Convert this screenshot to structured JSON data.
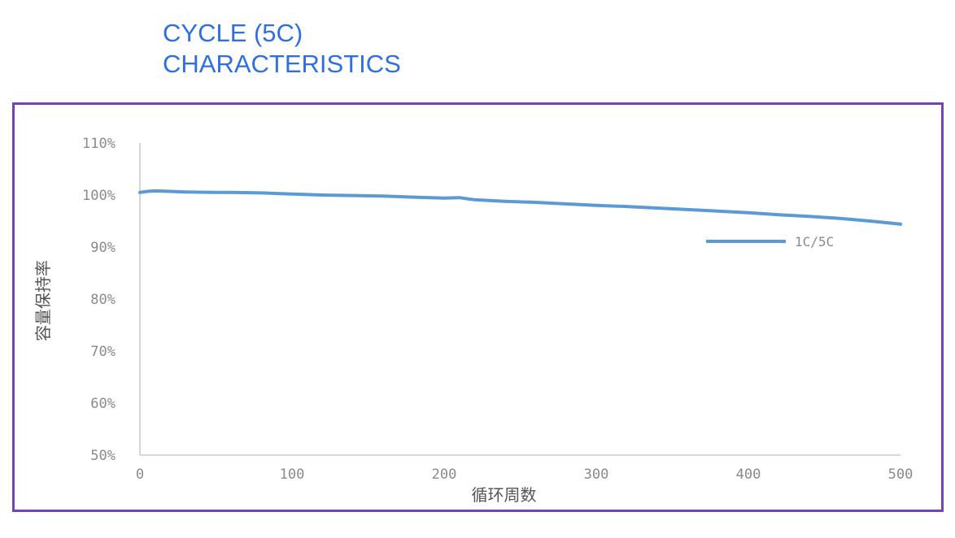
{
  "header": {
    "title_line1": "CYCLE (5C)",
    "title_line2": "CHARACTERISTICS"
  },
  "colors": {
    "title": "#2f6fe0",
    "frame": "#7443b5",
    "series": "#5b9bd5"
  },
  "chart_data": {
    "type": "line",
    "title": "CYCLE (5C) CHARACTERISTICS",
    "xlabel": "循环周数",
    "ylabel": "容量保持率",
    "xlim": [
      0,
      500
    ],
    "ylim": [
      50,
      110
    ],
    "x_ticks": [
      "0",
      "100",
      "200",
      "300",
      "400",
      "500"
    ],
    "y_ticks": [
      "50%",
      "60%",
      "70%",
      "80%",
      "90%",
      "100%",
      "110%"
    ],
    "legend": {
      "position": "right",
      "entries": [
        "1C/5C"
      ]
    },
    "grid": false,
    "series": [
      {
        "name": "1C/5C",
        "x": [
          0,
          5,
          10,
          20,
          30,
          50,
          60,
          80,
          100,
          120,
          140,
          160,
          180,
          200,
          210,
          220,
          240,
          260,
          280,
          300,
          320,
          340,
          360,
          380,
          400,
          420,
          440,
          460,
          480,
          500
        ],
        "y": [
          100.5,
          100.7,
          100.8,
          100.7,
          100.6,
          100.5,
          100.5,
          100.4,
          100.2,
          100.0,
          99.9,
          99.8,
          99.6,
          99.4,
          99.5,
          99.1,
          98.8,
          98.6,
          98.3,
          98.0,
          97.8,
          97.5,
          97.2,
          96.9,
          96.6,
          96.2,
          95.9,
          95.5,
          95.0,
          94.4
        ]
      }
    ]
  }
}
